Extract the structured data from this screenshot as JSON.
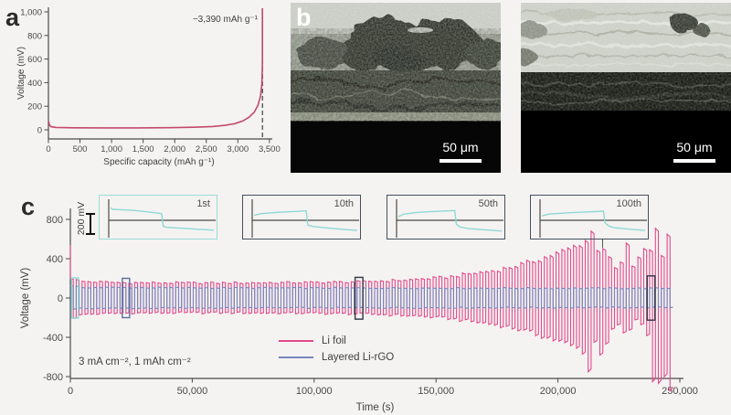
{
  "figure": {
    "background": "#f4f3f1",
    "text_color": "#3f3f3f"
  },
  "panel_a": {
    "label": "a",
    "annotation": "~3,390 mAh g⁻¹"
  },
  "panel_b": {
    "label": "b",
    "highlight_line_color": "#ecf314",
    "images": [
      {
        "name": "sem-cross-section-left",
        "scale_bar": "50 μm"
      },
      {
        "name": "sem-cross-section-right",
        "scale_bar": "50 μm"
      }
    ]
  },
  "panel_c": {
    "label": "c",
    "inset_scale_label": "200 mV",
    "condition": "3 mA cm⁻², 1 mAh cm⁻²"
  },
  "chart_data": [
    {
      "type": "line",
      "title": "Lithiation voltage profile",
      "xlabel": "Specific capacity (mAh g⁻¹)",
      "ylabel": "Voltage (mV)",
      "xlim": [
        0,
        3500
      ],
      "ylim": [
        -80,
        1050
      ],
      "x_tick_values": [
        0,
        500,
        1000,
        1500,
        2000,
        2500,
        3000,
        3500
      ],
      "x_tick_labels": [
        "0",
        "500",
        "1,000",
        "1,500",
        "2,000",
        "2,500",
        "3,000",
        "3,500"
      ],
      "y_tick_values": [
        0,
        200,
        400,
        600,
        800,
        1000
      ],
      "y_tick_labels": [
        "0",
        "200",
        "400",
        "600",
        "800",
        "1,000"
      ],
      "dashed_line_x": 3390,
      "annotation": "~3,390 mAh g⁻¹",
      "color": "#c4496b",
      "points": [
        [
          0,
          75
        ],
        [
          18,
          40
        ],
        [
          40,
          26
        ],
        [
          120,
          20
        ],
        [
          400,
          17
        ],
        [
          900,
          16
        ],
        [
          1400,
          16
        ],
        [
          1900,
          18
        ],
        [
          2300,
          22
        ],
        [
          2600,
          28
        ],
        [
          2800,
          38
        ],
        [
          2950,
          52
        ],
        [
          3080,
          75
        ],
        [
          3180,
          108
        ],
        [
          3260,
          150
        ],
        [
          3320,
          210
        ],
        [
          3360,
          290
        ],
        [
          3380,
          390
        ],
        [
          3388,
          520
        ],
        [
          3390,
          600
        ],
        [
          3390,
          1030
        ]
      ]
    },
    {
      "type": "line",
      "title": "Galvanostatic cycling of symmetric cells",
      "xlabel": "Time (s)",
      "ylabel": "Voltage (mV)",
      "xlim": [
        0,
        252000
      ],
      "ylim": [
        -870,
        880
      ],
      "x_tick_values": [
        0,
        50000,
        100000,
        150000,
        200000,
        250000
      ],
      "x_tick_labels": [
        "0",
        "50,000",
        "100,000",
        "150,000",
        "200,000",
        "250,000"
      ],
      "y_tick_values": [
        800,
        400,
        0,
        -400,
        -800
      ],
      "y_tick_labels": [
        "800",
        "400",
        "0",
        "-400",
        "-800"
      ],
      "condition": "3 mA cm⁻², 1 mAh cm⁻²",
      "cycle_period_s": 2400,
      "end_time_s": 247200,
      "series": [
        {
          "name": "Li foil",
          "color": "#e2498a",
          "initial_spike_mV": 540,
          "irregular_after_s": 211000,
          "amplitude_envelope": [
            [
              0,
              215
            ],
            [
              4800,
              172
            ],
            [
              24000,
              158
            ],
            [
              60000,
              156
            ],
            [
              96000,
              160
            ],
            [
              120000,
              168
            ],
            [
              140000,
              188
            ],
            [
              155000,
              215
            ],
            [
              165000,
              250
            ],
            [
              175000,
              285
            ],
            [
              182000,
              320
            ],
            [
              190000,
              375
            ],
            [
              197000,
              430
            ],
            [
              204000,
              490
            ],
            [
              209000,
              545
            ],
            [
              213000,
              600
            ],
            [
              217000,
              650
            ],
            [
              219500,
              620
            ],
            [
              221500,
              310
            ],
            [
              224000,
              270
            ],
            [
              226500,
              300
            ],
            [
              229000,
              430
            ],
            [
              232000,
              350
            ],
            [
              234500,
              310
            ],
            [
              236500,
              520
            ],
            [
              239000,
              600
            ],
            [
              241500,
              650
            ],
            [
              244000,
              690
            ],
            [
              246000,
              720
            ],
            [
              247200,
              760
            ]
          ]
        },
        {
          "name": "Layered Li-rGO",
          "color": "#7585bd",
          "initial_spike_mV": 0,
          "irregular_after_s": 999999,
          "amplitude_envelope": [
            [
              0,
              125
            ],
            [
              4800,
              110
            ],
            [
              60000,
              105
            ],
            [
              180000,
              102
            ],
            [
              247200,
              100
            ]
          ]
        }
      ],
      "cycle_markers": [
        {
          "label": "1st",
          "t0": 500,
          "t1": 3300,
          "v_top": 205,
          "v_bot": -205,
          "color": "#8fd9d5"
        },
        {
          "label": "10th",
          "t0": 21300,
          "t1": 24300,
          "v_top": 200,
          "v_bot": -200,
          "color": "#5c6b9c"
        },
        {
          "label": "50th",
          "t0": 116800,
          "t1": 120000,
          "v_top": 210,
          "v_bot": -215,
          "color": "#2f3644"
        },
        {
          "label": "100th",
          "t0": 236600,
          "t1": 239800,
          "v_top": 225,
          "v_bot": -225,
          "color": "#2f3644"
        }
      ]
    },
    {
      "type": "line",
      "title": "Voltage profile insets (Layered Li-rGO)",
      "scale_bar_label": "200 mV",
      "trace_color": "#8fd8d3",
      "insets": [
        {
          "label": "1st",
          "border_color": "#9bdcd7",
          "points": [
            [
              0.01,
              128
            ],
            [
              0.03,
              112
            ],
            [
              0.25,
              100
            ],
            [
              0.48,
              72
            ],
            [
              0.5,
              66
            ],
            [
              0.515,
              -62
            ],
            [
              0.55,
              -72
            ],
            [
              0.75,
              -85
            ],
            [
              1,
              -100
            ]
          ]
        },
        {
          "label": "10th",
          "border_color": "#454e60",
          "points": [
            [
              0.01,
              52
            ],
            [
              0.08,
              68
            ],
            [
              0.25,
              82
            ],
            [
              0.45,
              92
            ],
            [
              0.51,
              97
            ],
            [
              0.525,
              -48
            ],
            [
              0.57,
              -62
            ],
            [
              0.75,
              -82
            ],
            [
              1,
              -103
            ]
          ]
        },
        {
          "label": "50th",
          "border_color": "#454e60",
          "points": [
            [
              0.01,
              38
            ],
            [
              0.06,
              62
            ],
            [
              0.18,
              80
            ],
            [
              0.4,
              92
            ],
            [
              0.55,
              99
            ],
            [
              0.565,
              -40
            ],
            [
              0.6,
              -68
            ],
            [
              0.68,
              -85
            ],
            [
              0.85,
              -97
            ],
            [
              1,
              -110
            ]
          ]
        },
        {
          "label": "100th",
          "border_color": "#454e60",
          "points": [
            [
              0.01,
              45
            ],
            [
              0.08,
              64
            ],
            [
              0.3,
              78
            ],
            [
              0.52,
              88
            ],
            [
              0.6,
              93
            ],
            [
              0.615,
              -25
            ],
            [
              0.65,
              -58
            ],
            [
              0.7,
              -75
            ],
            [
              0.85,
              -90
            ],
            [
              1,
              -103
            ]
          ]
        }
      ]
    }
  ]
}
